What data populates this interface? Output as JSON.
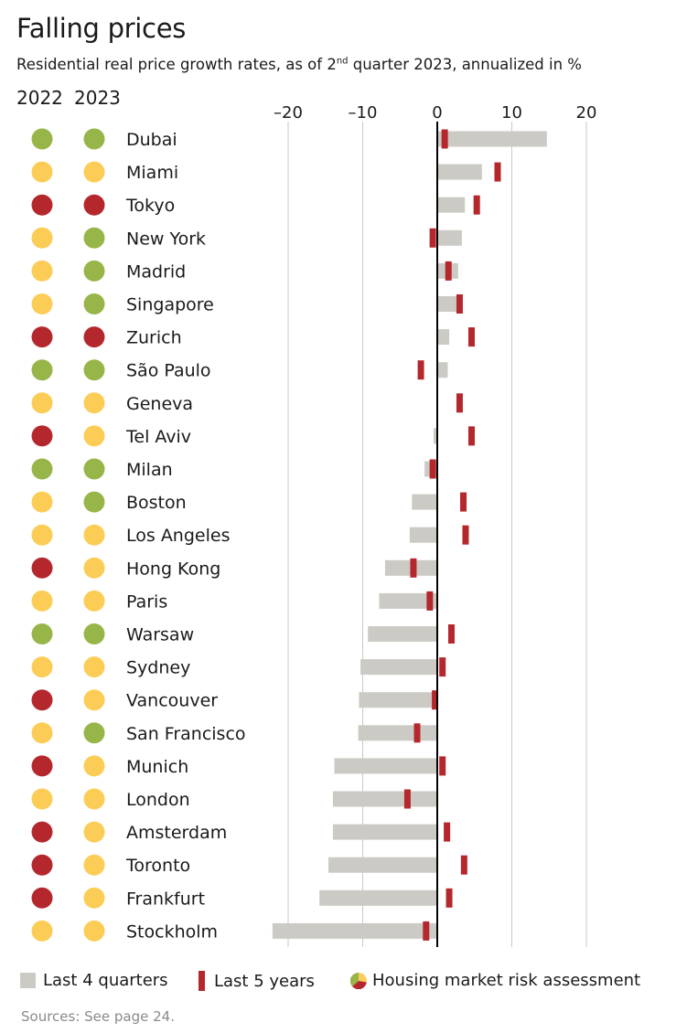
{
  "title": "Falling prices",
  "subtitle_pre": "Residential real price growth rates, as of 2",
  "subtitle_sup": "nd",
  "subtitle_post": " quarter 2023, annualized in %",
  "year_2022": "2022",
  "year_2023": "2023",
  "legend": {
    "bar": "Last 4 quarters",
    "mark": "Last 5 years",
    "risk": "Housing market risk assessment"
  },
  "source": "Sources: See page 24.",
  "colors": {
    "green": "#97b548",
    "amber": "#fccd56",
    "red": "#b4282d",
    "bar": "#cbcac4",
    "mark": "#b4282d",
    "axis": "#000000",
    "grid": "#c8c8c8"
  },
  "chart_data": {
    "type": "bar",
    "orientation": "horizontal",
    "xlim": [
      -22,
      22
    ],
    "x_ticks": [
      -20,
      -10,
      0,
      10,
      20
    ],
    "x_tick_labels": [
      "–20",
      "–10",
      "0",
      "10",
      "20"
    ],
    "grid": true,
    "categories": [
      "Dubai",
      "Miami",
      "Tokyo",
      "New York",
      "Madrid",
      "Singapore",
      "Zurich",
      "São Paulo",
      "Geneva",
      "Tel Aviv",
      "Milan",
      "Boston",
      "Los Angeles",
      "Hong Kong",
      "Paris",
      "Warsaw",
      "Sydney",
      "Vancouver",
      "San Francisco",
      "Munich",
      "London",
      "Amsterdam",
      "Toronto",
      "Frankfurt",
      "Stockholm"
    ],
    "series": [
      {
        "name": "Last 4 quarters",
        "values": [
          14.7,
          6.0,
          3.7,
          3.3,
          2.8,
          2.6,
          1.6,
          1.4,
          0.0,
          -0.5,
          -1.7,
          -3.4,
          -3.7,
          -7.0,
          -7.8,
          -9.3,
          -10.3,
          -10.5,
          -10.6,
          -13.8,
          -14.0,
          -14.0,
          -14.6,
          -15.8,
          -22.1
        ]
      },
      {
        "name": "Last 5 years",
        "values": [
          1.0,
          8.1,
          5.3,
          -0.6,
          1.5,
          3.0,
          4.6,
          -2.2,
          3.0,
          4.6,
          -0.6,
          3.5,
          3.8,
          -3.2,
          -1.0,
          1.9,
          0.7,
          -0.3,
          -2.7,
          0.7,
          -4.0,
          1.3,
          3.6,
          1.6,
          -1.5
        ]
      }
    ],
    "risk_2022": [
      "green",
      "amber",
      "red",
      "amber",
      "amber",
      "amber",
      "red",
      "green",
      "amber",
      "red",
      "green",
      "amber",
      "amber",
      "red",
      "amber",
      "green",
      "amber",
      "red",
      "amber",
      "red",
      "amber",
      "red",
      "red",
      "red",
      "amber"
    ],
    "risk_2023": [
      "green",
      "amber",
      "red",
      "green",
      "green",
      "green",
      "red",
      "green",
      "amber",
      "amber",
      "green",
      "green",
      "amber",
      "amber",
      "amber",
      "green",
      "amber",
      "amber",
      "green",
      "amber",
      "amber",
      "amber",
      "amber",
      "amber",
      "amber"
    ]
  }
}
